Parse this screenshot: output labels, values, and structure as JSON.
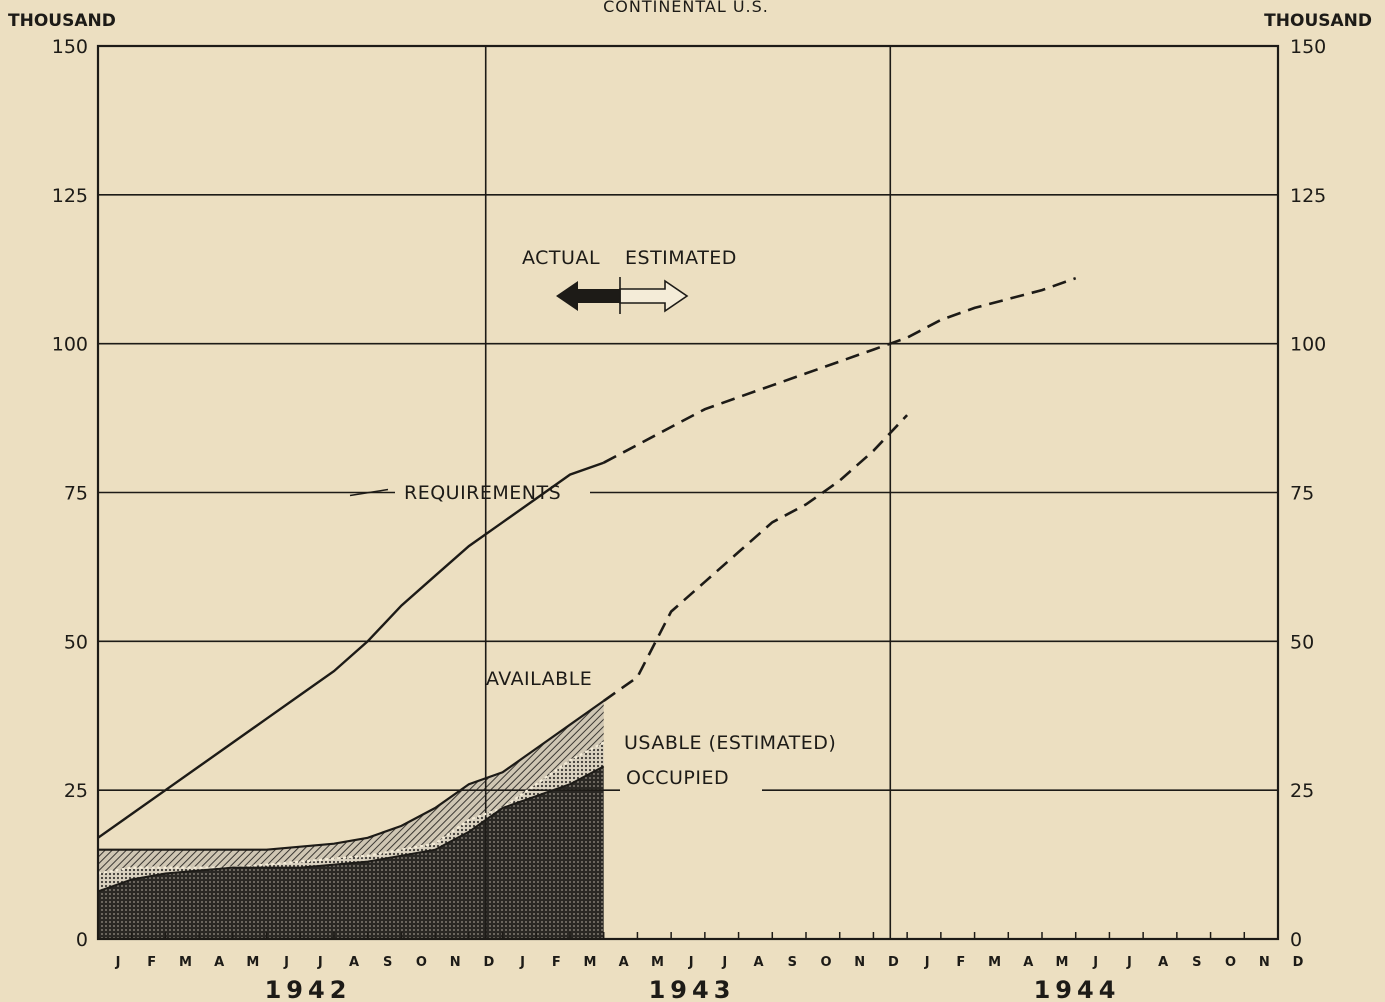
{
  "chart_data": {
    "type": "area",
    "title": "CONTINENTAL U.S.",
    "ylabel": "THOUSAND",
    "ylabel_right": "THOUSAND",
    "ylim": [
      0,
      150
    ],
    "yticks": [
      0,
      25,
      50,
      75,
      100,
      125,
      150
    ],
    "x_months": [
      "J",
      "F",
      "M",
      "A",
      "M",
      "J",
      "J",
      "A",
      "S",
      "O",
      "N",
      "D",
      "J",
      "F",
      "M",
      "A",
      "M",
      "J",
      "J",
      "A",
      "S",
      "O",
      "N",
      "D",
      "J",
      "F",
      "M",
      "A",
      "M",
      "J",
      "J",
      "A",
      "S",
      "O",
      "N",
      "D"
    ],
    "years": [
      "1942",
      "1943",
      "1944"
    ],
    "legend_annotation": {
      "actual": "ACTUAL",
      "estimated": "ESTIMATED"
    },
    "series": [
      {
        "name": "REQUIREMENTS",
        "actual_x": [
          0,
          1,
          2,
          3,
          4,
          5,
          6,
          7,
          8,
          9,
          10,
          11,
          12,
          13,
          14,
          15
        ],
        "actual_y": [
          17,
          21,
          25,
          29,
          33,
          37,
          41,
          45,
          50,
          56,
          61,
          66,
          70,
          74,
          78,
          80
        ],
        "estimated_x": [
          15,
          16,
          17,
          18,
          19,
          20,
          21,
          22,
          23,
          24,
          25,
          26,
          27,
          28,
          29
        ],
        "estimated_y": [
          80,
          83,
          86,
          89,
          91,
          93,
          95,
          97,
          99,
          101,
          104,
          106,
          107.5,
          109,
          111
        ]
      },
      {
        "name": "AVAILABLE",
        "actual_x": [
          0,
          1,
          2,
          3,
          4,
          5,
          6,
          7,
          8,
          9,
          10,
          11,
          12,
          13,
          14,
          15
        ],
        "actual_y": [
          15,
          15,
          15,
          15,
          15,
          15,
          15.5,
          16,
          17,
          19,
          22,
          26,
          28,
          32,
          36,
          40
        ],
        "estimated_x": [
          15,
          16,
          17,
          18,
          19,
          20,
          21,
          22,
          23,
          24
        ],
        "estimated_y": [
          40,
          44,
          55,
          60,
          65,
          70,
          73,
          77,
          82,
          88
        ]
      },
      {
        "name": "USABLE (ESTIMATED)",
        "x": [
          0,
          1,
          2,
          3,
          4,
          5,
          6,
          7,
          8,
          9,
          10,
          11,
          12,
          13,
          14,
          15
        ],
        "y": [
          11,
          12,
          12,
          12,
          12,
          12.5,
          13,
          13.5,
          14,
          15,
          16,
          20,
          22,
          26,
          30,
          33
        ]
      },
      {
        "name": "OCCUPIED",
        "x": [
          0,
          1,
          2,
          3,
          4,
          5,
          6,
          7,
          8,
          9,
          10,
          11,
          12,
          13,
          14,
          15
        ],
        "y": [
          8,
          10,
          11,
          11.5,
          12,
          12,
          12,
          12.5,
          13,
          14,
          15,
          18,
          22,
          24,
          26,
          29
        ]
      }
    ]
  }
}
